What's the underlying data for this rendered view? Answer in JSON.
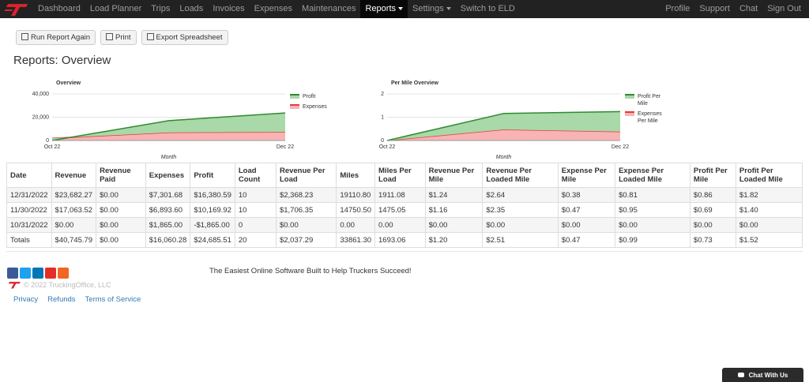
{
  "nav": {
    "left": [
      "Dashboard",
      "Load Planner",
      "Trips",
      "Loads",
      "Invoices",
      "Expenses",
      "Maintenances",
      "Reports",
      "Settings",
      "Switch to ELD"
    ],
    "right": [
      "Profile",
      "Support",
      "Chat",
      "Sign Out"
    ]
  },
  "buttons": [
    "Run Report Again",
    "Print",
    "Export Spreadsheet"
  ],
  "heading": "Reports: Overview",
  "charts": [
    {
      "type": "area",
      "stacked": true,
      "title": "Overview",
      "x_label": "Month",
      "categories": [
        "Oct 22",
        null,
        "Dec 22"
      ],
      "series": [
        {
          "name": "Profit",
          "color": "#2e8b2e",
          "fill": "#a9d8a9",
          "values": [
            -1865.0,
            10169.92,
            16380.59
          ]
        },
        {
          "name": "Expenses",
          "color": "#e8383d",
          "fill": "#f8b4b5",
          "values": [
            1865.0,
            6893.6,
            7301.68
          ]
        }
      ],
      "ylim": [
        0,
        40000
      ],
      "yticks": [
        0,
        {
          "value": 20000,
          "label": "20,000"
        },
        {
          "value": 40000,
          "label": "40,000"
        }
      ],
      "grid": true
    },
    {
      "type": "area",
      "stacked": true,
      "title": "Per Mile Overview",
      "x_label": "Month",
      "categories": [
        "Oct 22",
        null,
        "Dec 22"
      ],
      "series": [
        {
          "name": "Profit Per Mile",
          "color": "#2e8b2e",
          "fill": "#a9d8a9",
          "values": [
            0.0,
            0.69,
            0.86
          ]
        },
        {
          "name": "Expenses Per Mile",
          "color": "#e8383d",
          "fill": "#f8b4b5",
          "values": [
            0.0,
            0.47,
            0.38
          ]
        }
      ],
      "ylim": [
        0,
        2
      ],
      "yticks": [
        0,
        1,
        2
      ],
      "grid": true
    }
  ],
  "table": {
    "headers": [
      "Date",
      "Revenue",
      "Revenue Paid",
      "Expenses",
      "Profit",
      "Load Count",
      "Revenue Per Load",
      "Miles",
      "Miles Per Load",
      "Revenue Per Mile",
      "Revenue Per Loaded Mile",
      "Expense Per Mile",
      "Expense Per Loaded Mile",
      "Profit Per Mile",
      "Profit Per Loaded Mile"
    ],
    "rows": [
      [
        "12/31/2022",
        "$23,682.27",
        "$0.00",
        "$7,301.68",
        "$16,380.59",
        "10",
        "$2,368.23",
        "19110.80",
        "1911.08",
        "$1.24",
        "$2.64",
        "$0.38",
        "$0.81",
        "$0.86",
        "$1.82"
      ],
      [
        "11/30/2022",
        "$17,063.52",
        "$0.00",
        "$6,893.60",
        "$10,169.92",
        "10",
        "$1,706.35",
        "14750.50",
        "1475.05",
        "$1.16",
        "$2.35",
        "$0.47",
        "$0.95",
        "$0.69",
        "$1.40"
      ],
      [
        "10/31/2022",
        "$0.00",
        "$0.00",
        "$1,865.00",
        "-$1,865.00",
        "0",
        "$0.00",
        "0.00",
        "0.00",
        "$0.00",
        "$0.00",
        "$0.00",
        "$0.00",
        "$0.00",
        "$0.00"
      ],
      [
        "Totals",
        "$40,745.79",
        "$0.00",
        "$16,060.28",
        "$24,685.51",
        "20",
        "$2,037.29",
        "33861.30",
        "1693.06",
        "$1.20",
        "$2.51",
        "$0.47",
        "$0.99",
        "$0.73",
        "$1.52"
      ]
    ]
  },
  "footer": {
    "tagline": "The Easiest Online Software Built to Help Truckers Succeed!",
    "copyright": "© 2022 TruckingOffice, LLC",
    "links": [
      "Privacy",
      "Refunds",
      "Terms of Service"
    ]
  },
  "chat_widget": "Chat With Us"
}
